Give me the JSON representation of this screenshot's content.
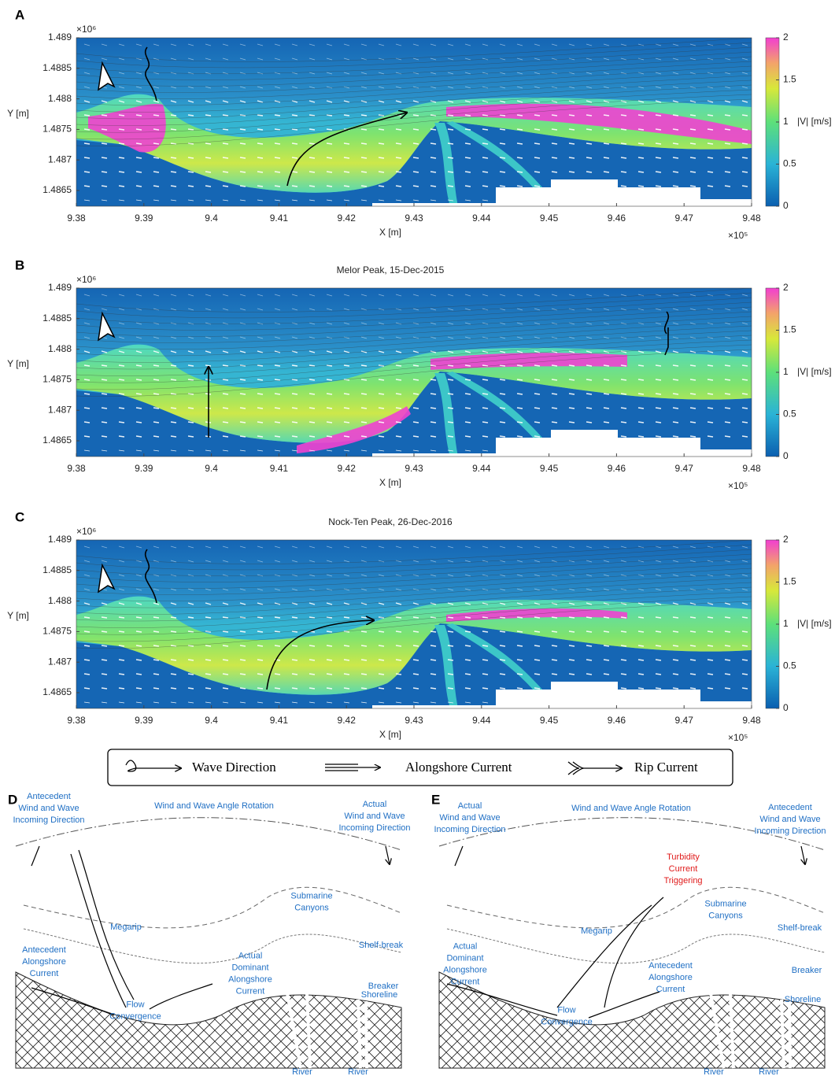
{
  "panels": [
    {
      "label": "A",
      "xlabel": "X [m]",
      "ylabel": "Y [m]",
      "x_scale": "×10⁵",
      "y_scale": "×10⁶",
      "colorbar_label": "|V| [m/s]",
      "xticks": [
        9.38,
        9.39,
        9.4,
        9.41,
        9.42,
        9.43,
        9.44,
        9.45,
        9.46,
        9.47,
        9.48
      ],
      "yticks": [
        1.489,
        1.4885,
        1.488,
        1.4875,
        1.487,
        1.4865
      ],
      "colorbar_ticks": [
        0,
        0.5,
        1,
        1.5,
        2
      ]
    },
    {
      "label": "B",
      "title": "Melor Peak, 15-Dec-2015",
      "xlabel": "X [m]",
      "ylabel": "Y [m]",
      "x_scale": "×10⁵",
      "y_scale": "×10⁶",
      "colorbar_label": "|V| [m/s]",
      "xticks": [
        9.38,
        9.39,
        9.4,
        9.41,
        9.42,
        9.43,
        9.44,
        9.45,
        9.46,
        9.47,
        9.48
      ],
      "yticks": [
        1.489,
        1.4885,
        1.488,
        1.4875,
        1.487,
        1.4865
      ],
      "colorbar_ticks": [
        0,
        0.5,
        1,
        1.5,
        2
      ]
    },
    {
      "label": "C",
      "title": "Nock-Ten Peak, 26-Dec-2016",
      "xlabel": "X [m]",
      "ylabel": "Y [m]",
      "x_scale": "×10⁵",
      "y_scale": "×10⁶",
      "colorbar_label": "|V| [m/s]",
      "xticks": [
        9.38,
        9.39,
        9.4,
        9.41,
        9.42,
        9.43,
        9.44,
        9.45,
        9.46,
        9.47,
        9.48
      ],
      "yticks": [
        1.489,
        1.4885,
        1.488,
        1.4875,
        1.487,
        1.4865
      ],
      "colorbar_ticks": [
        0,
        0.5,
        1,
        1.5,
        2
      ]
    }
  ],
  "legend": [
    "Wave Direction",
    "Alongshore Current",
    "Rip Current"
  ],
  "diagrams": [
    {
      "label": "D",
      "labels": [
        [
          "Antecedent",
          "Wind and Wave",
          "Incoming Direction"
        ],
        [
          "Wind and Wave Angle Rotation"
        ],
        [
          "Actual",
          "Wind and Wave",
          "Incoming Direction"
        ],
        [
          "Submarine",
          "Canyons"
        ],
        [
          "Shelf-break"
        ],
        [
          "Megarip"
        ],
        [
          "Antecedent",
          "Alongshore",
          "Current"
        ],
        [
          "Breaker"
        ],
        [
          "Actual",
          "Dominant",
          "Alongshore",
          "Current"
        ],
        [
          "Shoreline"
        ],
        [
          "Flow",
          "Convergence"
        ],
        [
          "River"
        ],
        [
          "River"
        ]
      ]
    },
    {
      "label": "E",
      "labels": [
        [
          "Actual",
          "Wind and Wave",
          "Incoming Direction"
        ],
        [
          "Wind and Wave Angle Rotation"
        ],
        [
          "Antecedent",
          "Wind and Wave",
          "Incoming Direction"
        ],
        [
          "Turbidity",
          "Current",
          "Triggering"
        ],
        [
          "Submarine",
          "Canyons"
        ],
        [
          "Shelf-break"
        ],
        [
          "Megarip"
        ],
        [
          "Actual",
          "Dominant",
          "Alongshore",
          "Current"
        ],
        [
          "Antecedent",
          "Alongshore",
          "Current"
        ],
        [
          "Breaker"
        ],
        [
          "Shoreline"
        ],
        [
          "Flow",
          "Convergence"
        ],
        [
          "River"
        ],
        [
          "River"
        ]
      ]
    }
  ]
}
